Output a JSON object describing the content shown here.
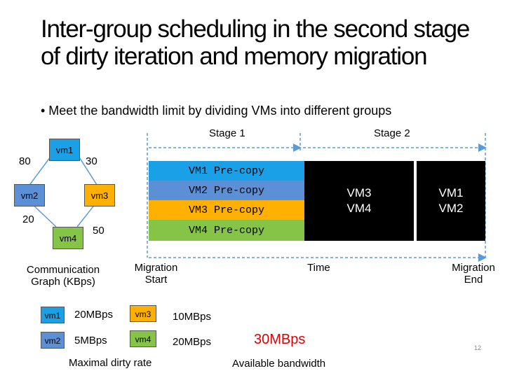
{
  "title": "Inter-group scheduling in the second stage of dirty iteration and memory migration",
  "bullet": "• Meet the bandwidth limit by dividing VMs into different groups",
  "graph": {
    "nodes": [
      "vm1",
      "vm2",
      "vm3",
      "vm4"
    ],
    "edge_weights": [
      "80",
      "30",
      "20",
      "50"
    ],
    "caption": "Communication Graph (KBps)"
  },
  "timeline": {
    "stage1": "Stage 1",
    "stage2": "Stage 2",
    "bars": [
      "VM1 Pre-copy",
      "VM2 Pre-copy",
      "VM3 Pre-copy",
      "VM4 Pre-copy"
    ],
    "bar_colors": [
      "#1aa0e6",
      "#5b8fd6",
      "#ffb000",
      "#86c447"
    ],
    "group1": "VM3\nVM4",
    "group2": "VM1\nVM2",
    "migration_start": "Migration Start",
    "time": "Time",
    "migration_end": "Migration End"
  },
  "dirty_rates": {
    "vm1_label": "vm1",
    "vm1_rate": "20MBps",
    "vm2_label": "vm2",
    "vm2_rate": "5MBps",
    "vm3_label": "vm3",
    "vm3_rate": "10MBps",
    "vm4_label": "vm4",
    "vm4_rate": "20MBps",
    "caption": "Maximal dirty rate"
  },
  "bandwidth": {
    "value": "30MBps",
    "caption": "Available bandwidth"
  },
  "page_number": "12"
}
